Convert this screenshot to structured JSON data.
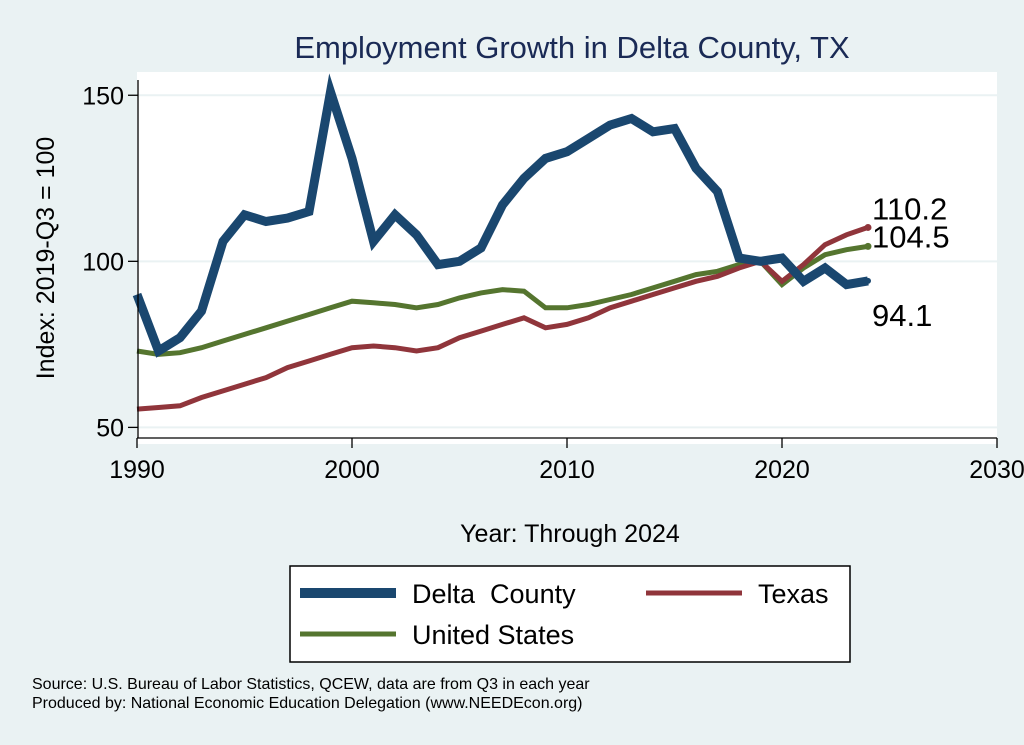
{
  "chart_data": {
    "type": "line",
    "title": "Employment Growth in Delta County, TX",
    "xlabel": "Year: Through 2024",
    "ylabel": "Index: 2019-Q3 = 100",
    "xlim": [
      1990,
      2030
    ],
    "ylim": [
      45,
      157
    ],
    "x_ticks": [
      1990,
      2000,
      2010,
      2020,
      2030
    ],
    "y_ticks": [
      50,
      100,
      150
    ],
    "grid": true,
    "x": [
      1990,
      1991,
      1992,
      1993,
      1994,
      1995,
      1996,
      1997,
      1998,
      1999,
      2000,
      2001,
      2002,
      2003,
      2004,
      2005,
      2006,
      2007,
      2008,
      2009,
      2010,
      2011,
      2012,
      2013,
      2014,
      2015,
      2016,
      2017,
      2018,
      2019,
      2020,
      2021,
      2022,
      2023,
      2024
    ],
    "series": [
      {
        "name": "Delta  County",
        "color": "#1a476f",
        "values": [
          90,
          73,
          77,
          85,
          106,
          114,
          112,
          113,
          115,
          151,
          131,
          106,
          114,
          108,
          99,
          100,
          104,
          117,
          125,
          131,
          133,
          137,
          141,
          143,
          139,
          140,
          128,
          121,
          101,
          100,
          101,
          94,
          98,
          93,
          94.1
        ],
        "end_label": "94.1"
      },
      {
        "name": "Texas",
        "color": "#90353b",
        "values": [
          55.5,
          56,
          56.5,
          59,
          61,
          63,
          65,
          68,
          70,
          72,
          74,
          74.5,
          74,
          73,
          74,
          77,
          79,
          81,
          83,
          80,
          81,
          83,
          86,
          88,
          90,
          92,
          94,
          95.5,
          98,
          100,
          94,
          99,
          105,
          108,
          110.2
        ],
        "end_label": "110.2"
      },
      {
        "name": "United States",
        "color": "#55752f",
        "values": [
          73,
          72,
          72.5,
          74,
          76,
          78,
          80,
          82,
          84,
          86,
          88,
          87.5,
          87,
          86,
          87,
          89,
          90.5,
          91.5,
          91,
          86,
          86,
          87,
          88.5,
          90,
          92,
          94,
          96,
          97,
          99,
          100,
          93,
          98,
          102,
          103.5,
          104.5
        ],
        "end_label": "104.5"
      }
    ],
    "legend": {
      "placement": "bottom",
      "entries": [
        "Delta  County",
        "Texas",
        "United States"
      ]
    },
    "source_lines": [
      "Source: U.S. Bureau of Labor Statistics, QCEW, data are from Q3 in each year",
      "Produced by: National Economic Education Delegation (www.NEEDEcon.org)"
    ]
  },
  "colors": {
    "background": "#eaf2f3",
    "plot_background": "#ffffff"
  }
}
